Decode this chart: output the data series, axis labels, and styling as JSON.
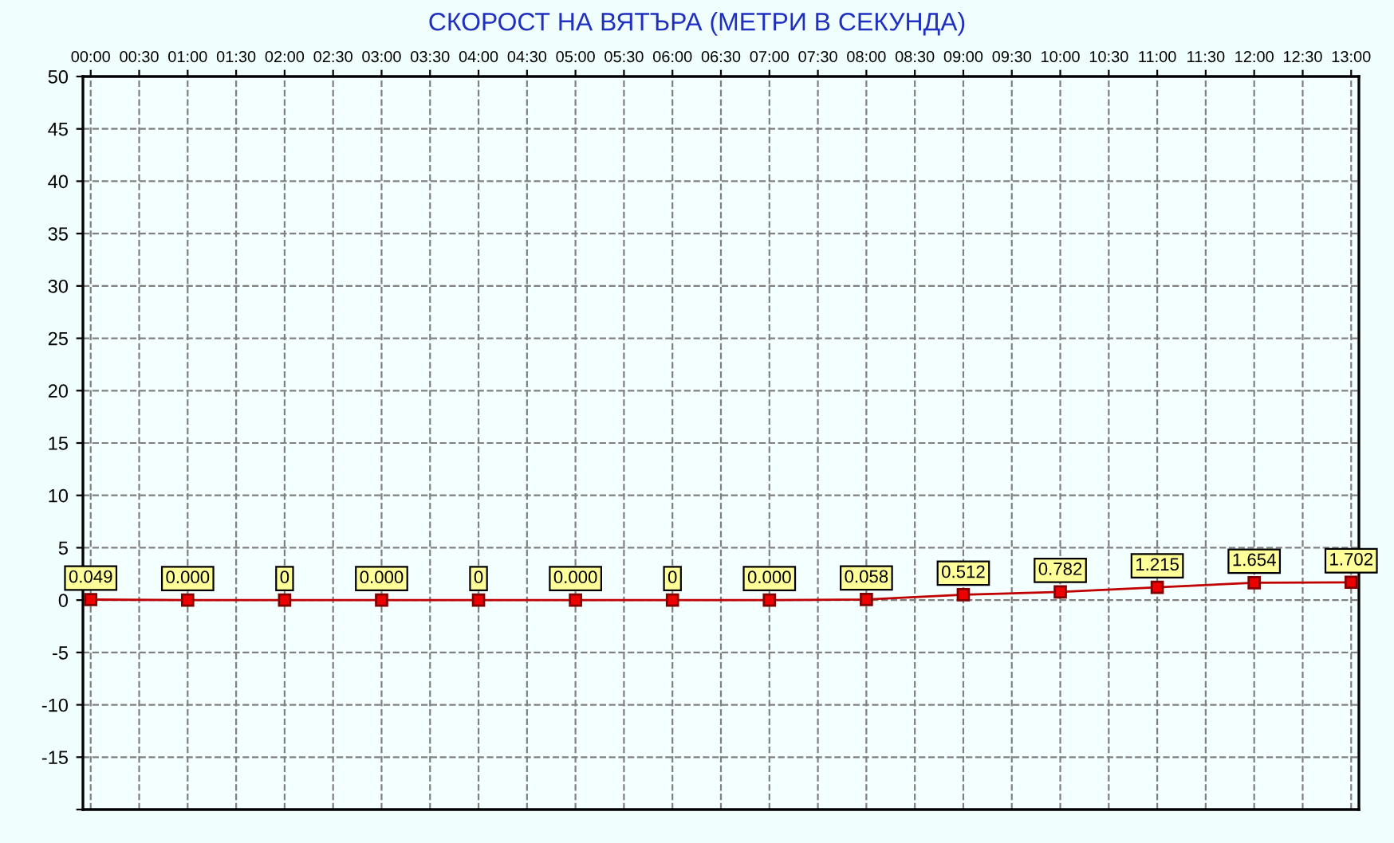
{
  "chart_data": {
    "type": "line",
    "title": "СКОРОСТ НА ВЯТЪРА (МЕТРИ В СЕКУНДА)",
    "x": [
      0,
      1,
      2,
      3,
      4,
      5,
      6,
      7,
      8,
      9,
      10,
      11,
      12,
      13
    ],
    "series": [
      {
        "color": "#c00000",
        "values": [
          0.049,
          0,
          0,
          0,
          0,
          0,
          0,
          0,
          0.058,
          0.512,
          0.782,
          1.215,
          1.654,
          1.702
        ],
        "value_labels": [
          "0.049",
          "0.000",
          "0",
          "0.000",
          "0",
          "0.000",
          "0",
          "0.000",
          "0.058",
          "0.512",
          "0.782",
          "1.215",
          "1.654",
          "1.702"
        ]
      }
    ],
    "xlim": [
      -0.08,
      13.08
    ],
    "xticks": [
      {
        "value": 0,
        "label": "00:00"
      },
      {
        "value": 0.5,
        "label": "00:30"
      },
      {
        "value": 1,
        "label": "01:00"
      },
      {
        "value": 1.5,
        "label": "01:30"
      },
      {
        "value": 2,
        "label": "02:00"
      },
      {
        "value": 2.5,
        "label": "02:30"
      },
      {
        "value": 3,
        "label": "03:00"
      },
      {
        "value": 3.5,
        "label": "03:30"
      },
      {
        "value": 4,
        "label": "04:00"
      },
      {
        "value": 4.5,
        "label": "04:30"
      },
      {
        "value": 5,
        "label": "05:00"
      },
      {
        "value": 5.5,
        "label": "05:30"
      },
      {
        "value": 6,
        "label": "06:00"
      },
      {
        "value": 6.5,
        "label": "06:30"
      },
      {
        "value": 7,
        "label": "07:00"
      },
      {
        "value": 7.5,
        "label": "07:30"
      },
      {
        "value": 8,
        "label": "08:00"
      },
      {
        "value": 8.5,
        "label": "08:30"
      },
      {
        "value": 9,
        "label": "09:00"
      },
      {
        "value": 9.5,
        "label": "09:30"
      },
      {
        "value": 10,
        "label": "10:00"
      },
      {
        "value": 10.5,
        "label": "10:30"
      },
      {
        "value": 11,
        "label": "11:00"
      },
      {
        "value": 11.5,
        "label": "11:30"
      },
      {
        "value": 12,
        "label": "12:00"
      },
      {
        "value": 12.5,
        "label": "12:30"
      },
      {
        "value": 13,
        "label": "13:00"
      }
    ],
    "ylim": [
      -20,
      50
    ],
    "yticks": [
      {
        "value": -20,
        "label": null
      },
      -15,
      -10,
      -5,
      0,
      5,
      10,
      15,
      20,
      25,
      30,
      35,
      40,
      45,
      50
    ],
    "grid": true,
    "marker": "square",
    "line_style": "solid",
    "legend": false
  }
}
